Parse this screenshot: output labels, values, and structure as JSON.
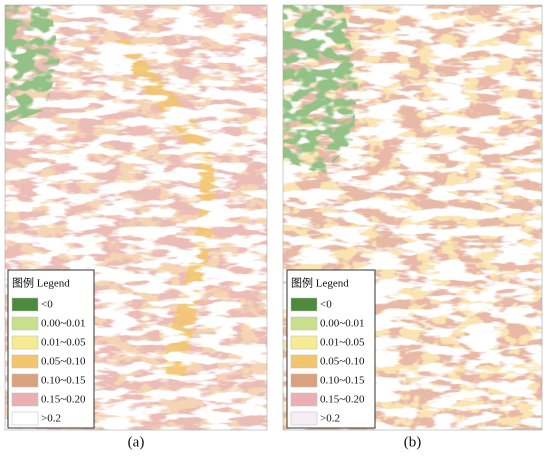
{
  "panels": [
    {
      "label": "(a)",
      "legend": {
        "title": "图例 Legend",
        "items": [
          {
            "label": "<0",
            "color": "#4e8a3c"
          },
          {
            "label": "0.00~0.01",
            "color": "#c8df8c"
          },
          {
            "label": "0.01~0.05",
            "color": "#f6eb92"
          },
          {
            "label": "0.05~0.10",
            "color": "#f3c56c"
          },
          {
            "label": "0.10~0.15",
            "color": "#d9a17d"
          },
          {
            "label": "0.15~0.20",
            "color": "#eab0b4"
          },
          {
            "label": ">0.2",
            "color": "#ffffff"
          }
        ]
      }
    },
    {
      "label": "(b)",
      "legend": {
        "title": "图例 Legend",
        "items": [
          {
            "label": "<0",
            "color": "#4e8a3c"
          },
          {
            "label": "0.00~0.01",
            "color": "#c8df8c"
          },
          {
            "label": "0.01~0.05",
            "color": "#f6eb92"
          },
          {
            "label": "0.05~0.10",
            "color": "#f3c56c"
          },
          {
            "label": "0.10~0.15",
            "color": "#d9a17d"
          },
          {
            "label": "0.15~0.20",
            "color": "#eab0b4"
          },
          {
            "label": ">0.2",
            "color": "#f7eef5"
          }
        ]
      }
    }
  ]
}
